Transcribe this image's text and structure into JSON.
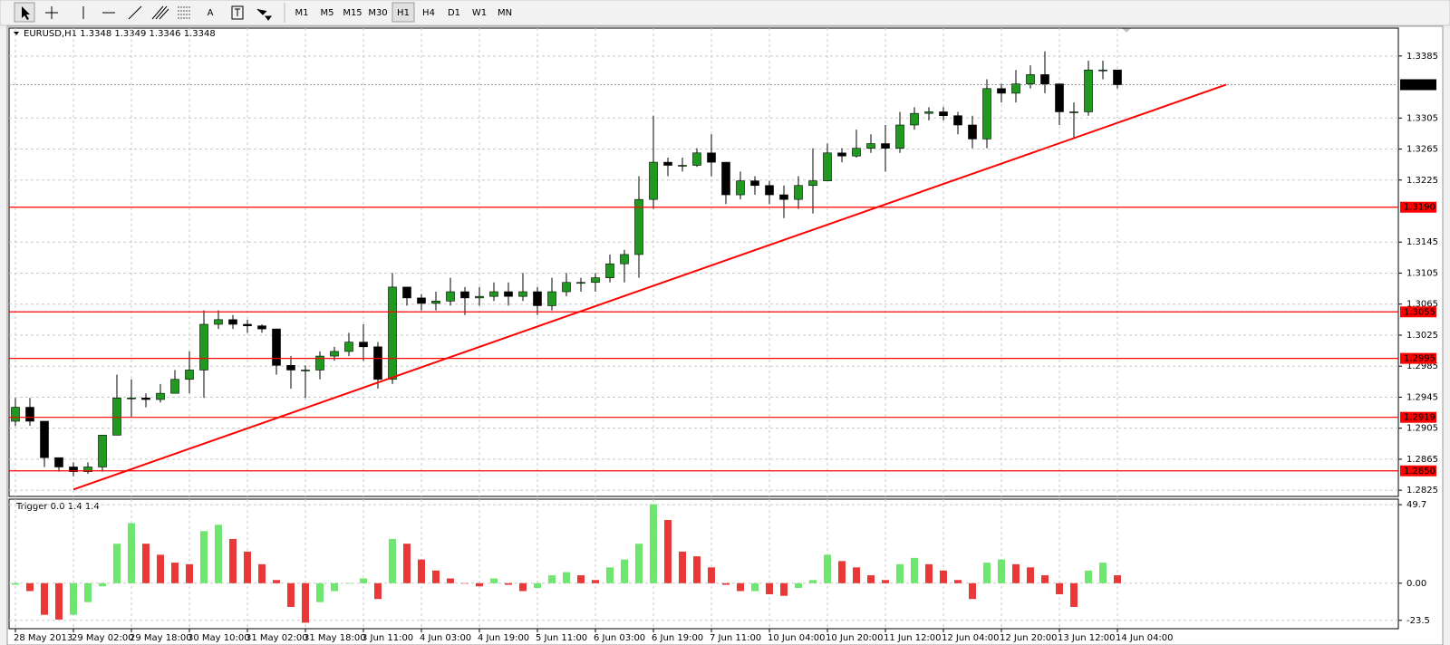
{
  "toolbar": {
    "text_tool": "A",
    "timeframes": [
      "M1",
      "M5",
      "M15",
      "M30",
      "H1",
      "H4",
      "D1",
      "W1",
      "MN"
    ],
    "active_timeframe": "H1"
  },
  "chart_data": [
    {
      "type": "candlestick",
      "title": "EURUSD,H1  1.3348 1.3349 1.3346 1.3348",
      "categories": [
        "28 May 2013",
        null,
        null,
        null,
        "29 May 02:00",
        null,
        null,
        null,
        "29 May 18:00",
        null,
        null,
        null,
        "30 May 10:00",
        null,
        null,
        null,
        "31 May 02:00",
        null,
        null,
        null,
        "31 May 18:00",
        null,
        null,
        null,
        "3 Jun 11:00",
        null,
        null,
        null,
        "4 Jun 03:00",
        null,
        null,
        null,
        "4 Jun 19:00",
        null,
        null,
        null,
        "5 Jun 11:00",
        null,
        null,
        null,
        "6 Jun 03:00",
        null,
        null,
        null,
        "6 Jun 19:00",
        null,
        null,
        null,
        "7 Jun 11:00",
        null,
        null,
        null,
        "10 Jun 04:00",
        null,
        null,
        null,
        "10 Jun 20:00",
        null,
        null,
        null,
        "11 Jun 12:00",
        null,
        null,
        null,
        "12 Jun 04:00",
        null,
        null,
        null,
        "12 Jun 20:00",
        null,
        null,
        null,
        "13 Jun 12:00",
        null,
        null,
        null,
        "14 Jun 04:00"
      ],
      "open": [
        1.2914,
        1.2932,
        1.2914,
        1.2867,
        1.2855,
        1.2849,
        1.2855,
        1.2896,
        1.2944,
        1.2944,
        1.2942,
        1.295,
        1.2968,
        1.298,
        1.3039,
        1.3045,
        1.3039,
        1.3037,
        1.3033,
        1.2986,
        1.298,
        1.298,
        1.2998,
        1.3004,
        1.3016,
        1.301,
        1.2968,
        1.3087,
        1.3073,
        1.3066,
        1.3069,
        1.3081,
        1.3073,
        1.3075,
        1.3081,
        1.3075,
        1.3081,
        1.3063,
        1.3081,
        1.3093,
        1.3093,
        1.3099,
        1.3117,
        1.3129,
        1.32,
        1.3248,
        1.3244,
        1.3244,
        1.326,
        1.3248,
        1.3206,
        1.3224,
        1.3218,
        1.3206,
        1.32,
        1.3218,
        1.3224,
        1.326,
        1.3256,
        1.3266,
        1.3272,
        1.3266,
        1.3296,
        1.3311,
        1.3313,
        1.3308,
        1.3296,
        1.3278,
        1.3343,
        1.3337,
        1.3349,
        1.3361,
        1.3349,
        1.3313,
        1.3313,
        1.3367,
        1.3367
      ],
      "high": [
        1.2944,
        1.2944,
        1.2914,
        1.2867,
        1.2861,
        1.2861,
        1.2896,
        1.2974,
        1.2968,
        1.295,
        1.2962,
        1.298,
        1.3004,
        1.3057,
        1.3057,
        1.3051,
        1.3045,
        1.3039,
        1.3033,
        1.2998,
        1.2986,
        1.3004,
        1.301,
        1.3028,
        1.3039,
        1.3016,
        1.3105,
        1.3087,
        1.3078,
        1.3081,
        1.3099,
        1.3087,
        1.3087,
        1.3093,
        1.3093,
        1.3105,
        1.3087,
        1.3099,
        1.3105,
        1.3099,
        1.3105,
        1.3129,
        1.3135,
        1.323,
        1.3308,
        1.3254,
        1.3254,
        1.3266,
        1.3284,
        1.3248,
        1.3236,
        1.323,
        1.3224,
        1.3218,
        1.323,
        1.3266,
        1.3272,
        1.3266,
        1.329,
        1.3284,
        1.3296,
        1.3313,
        1.3319,
        1.3319,
        1.3319,
        1.3313,
        1.3308,
        1.3355,
        1.3349,
        1.3367,
        1.3373,
        1.3391,
        1.3349,
        1.3325,
        1.3379,
        1.3379,
        1.3367
      ],
      "low": [
        1.2908,
        1.2908,
        1.2855,
        1.2849,
        1.2843,
        1.2846,
        1.2849,
        1.2896,
        1.292,
        1.2932,
        1.2938,
        1.295,
        1.295,
        1.2944,
        1.3033,
        1.3033,
        1.3028,
        1.3028,
        1.2974,
        1.2956,
        1.2944,
        1.2968,
        1.2992,
        1.2998,
        1.2992,
        1.2956,
        1.2962,
        1.3063,
        1.3057,
        1.3057,
        1.3063,
        1.3051,
        1.3063,
        1.3069,
        1.3063,
        1.3069,
        1.3051,
        1.3057,
        1.3075,
        1.3081,
        1.3081,
        1.3093,
        1.3093,
        1.3099,
        1.3188,
        1.323,
        1.3236,
        1.3242,
        1.323,
        1.3194,
        1.32,
        1.3206,
        1.3194,
        1.3176,
        1.3188,
        1.3182,
        1.3224,
        1.3248,
        1.3254,
        1.326,
        1.3236,
        1.326,
        1.329,
        1.3302,
        1.3302,
        1.3284,
        1.3266,
        1.3266,
        1.3325,
        1.3325,
        1.3343,
        1.3337,
        1.3296,
        1.3278,
        1.3308,
        1.3355,
        1.3343
      ],
      "close": [
        1.2932,
        1.2914,
        1.2867,
        1.2855,
        1.2849,
        1.2855,
        1.2896,
        1.2944,
        1.2944,
        1.2942,
        1.295,
        1.2968,
        1.298,
        1.3039,
        1.3045,
        1.3039,
        1.3037,
        1.3033,
        1.2986,
        1.298,
        1.298,
        1.2998,
        1.3004,
        1.3016,
        1.301,
        1.2968,
        1.3087,
        1.3073,
        1.3066,
        1.3069,
        1.3081,
        1.3073,
        1.3075,
        1.3081,
        1.3075,
        1.3081,
        1.3063,
        1.3081,
        1.3093,
        1.3093,
        1.3099,
        1.3117,
        1.3129,
        1.32,
        1.3248,
        1.3244,
        1.3244,
        1.326,
        1.3248,
        1.3206,
        1.3224,
        1.3218,
        1.3206,
        1.32,
        1.3218,
        1.3224,
        1.326,
        1.3256,
        1.3266,
        1.3272,
        1.3266,
        1.3296,
        1.3311,
        1.3313,
        1.3308,
        1.3296,
        1.3278,
        1.3343,
        1.3337,
        1.3349,
        1.3361,
        1.3349,
        1.3313,
        1.3313,
        1.3367,
        1.3367,
        1.3348
      ],
      "up_color": "#1f9a1f",
      "down_color": "#000000",
      "wick_color": "#000000",
      "ylim": [
        1.2817,
        1.3421
      ],
      "yticks": [
        1.3385,
        1.3305,
        1.3265,
        1.3225,
        1.3145,
        1.3105,
        1.3065,
        1.3025,
        1.2985,
        1.2945,
        1.2905,
        1.2865,
        1.2825
      ],
      "grid": true,
      "levels": [
        {
          "value": 1.319,
          "label": "1.3190"
        },
        1.3055,
        1.2995,
        1.2919,
        {
          "value": 1.285,
          "label": "1.2850"
        }
      ],
      "level_color": "#ff0000",
      "current_price": 1.3348,
      "trendline": {
        "x": [
          4,
          83.5
        ],
        "y": [
          1.2826,
          1.3348
        ],
        "color": "#ff0000"
      }
    },
    {
      "type": "histogram",
      "title": "Trigger 0.0 1.4 1.4",
      "values": [
        -1,
        -5,
        -20,
        -23,
        -20,
        -12,
        -2,
        25,
        38,
        25,
        18,
        13,
        12,
        33,
        37,
        28,
        20,
        12,
        2,
        -15,
        -25,
        -12,
        -5,
        0,
        3,
        -10,
        28,
        25,
        15,
        8,
        3,
        0,
        -2,
        3,
        -1,
        -5,
        -3,
        5,
        7,
        5,
        2,
        10,
        15,
        25,
        50,
        40,
        20,
        17,
        10,
        -1,
        -5,
        -5,
        -7,
        -8,
        -3,
        2,
        18,
        14,
        10,
        5,
        2,
        12,
        16,
        12,
        8,
        2,
        -10,
        13,
        15,
        12,
        10,
        5,
        -7,
        -15,
        8,
        13,
        5
      ],
      "up_color": "#5fe35f",
      "down_color": "#e52222",
      "ylim": [
        -28.8,
        53.2
      ],
      "yticks": [
        49.7,
        {
          "value": 0,
          "label": "0.00"
        },
        -23.5
      ],
      "grid": true
    }
  ]
}
